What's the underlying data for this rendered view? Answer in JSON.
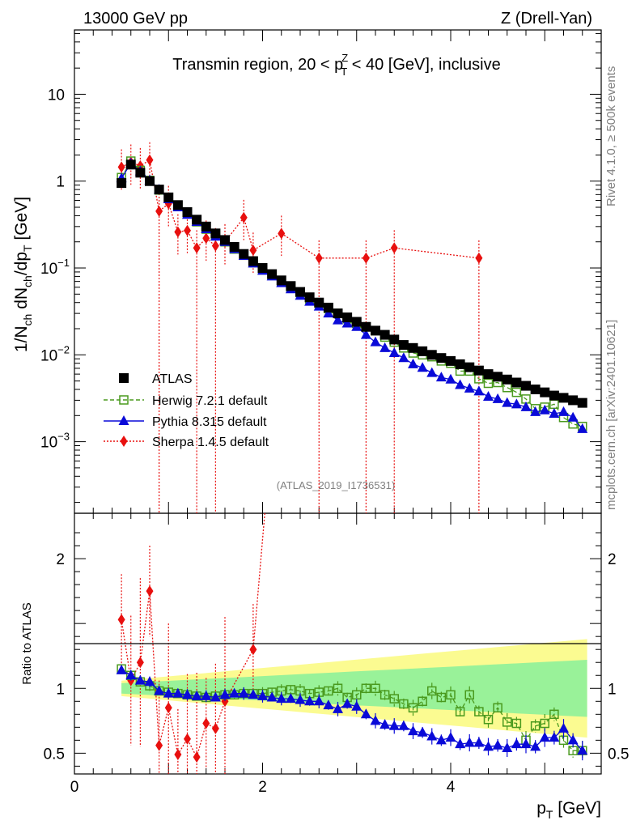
{
  "header": {
    "left": "13000 GeV pp",
    "right": "Z (Drell-Yan)"
  },
  "side_labels": {
    "rivet": "Rivet 4.1.0, ≥ 500k events",
    "mcplots": "mcplots.cern.ch [arXiv:2401.10621]"
  },
  "chart_data": [
    {
      "type": "scatter",
      "panel": "main",
      "title": "Transmin region, 20 < p_T^Z < 40 [GeV], inclusive",
      "title_parts": {
        "a": "Transmin region, 20 < p",
        "sub": "T",
        "sup": "Z",
        "b": " < 40 [GeV], inclusive"
      },
      "ylabel": "1/N_ch dN_ch/dp_T [GeV]",
      "ylabel_parts": {
        "p1": "1/N",
        "s1": "ch",
        "p2": " dN",
        "s2": "ch",
        "p3": "/dp",
        "s3": "T",
        "p4": " [GeV]"
      },
      "yscale": "log",
      "ylim": [
        0.00015,
        55
      ],
      "xlim": [
        0,
        5.6
      ],
      "yticks": [
        {
          "value": 10,
          "label": "10",
          "exp": ""
        },
        {
          "value": 1,
          "label": "1",
          "exp": ""
        },
        {
          "value": 0.1,
          "label": "10",
          "exp": "−1"
        },
        {
          "value": 0.01,
          "label": "10",
          "exp": "−2"
        },
        {
          "value": 0.001,
          "label": "10",
          "exp": "−3"
        }
      ],
      "watermark": "(ATLAS_2019_I1736531)",
      "legend_position": "lower-left",
      "series": [
        {
          "name": "ATLAS",
          "color": "#000000",
          "marker": "square",
          "x": [
            0.5,
            0.6,
            0.7,
            0.8,
            0.9,
            1.0,
            1.1,
            1.2,
            1.3,
            1.4,
            1.5,
            1.6,
            1.7,
            1.8,
            1.9,
            2.0,
            2.1,
            2.2,
            2.3,
            2.4,
            2.5,
            2.6,
            2.7,
            2.8,
            2.9,
            3.0,
            3.1,
            3.2,
            3.3,
            3.4,
            3.5,
            3.6,
            3.7,
            3.8,
            3.9,
            4.0,
            4.1,
            4.2,
            4.3,
            4.4,
            4.5,
            4.6,
            4.7,
            4.8,
            4.9,
            5.0,
            5.1,
            5.2,
            5.3,
            5.4
          ],
          "y": [
            0.95,
            1.55,
            1.25,
            1.0,
            0.8,
            0.65,
            0.53,
            0.44,
            0.36,
            0.3,
            0.25,
            0.21,
            0.175,
            0.145,
            0.12,
            0.1,
            0.085,
            0.072,
            0.062,
            0.053,
            0.046,
            0.04,
            0.035,
            0.03,
            0.027,
            0.024,
            0.021,
            0.019,
            0.017,
            0.015,
            0.013,
            0.012,
            0.011,
            0.01,
            0.0092,
            0.0085,
            0.0078,
            0.0072,
            0.0066,
            0.006,
            0.0056,
            0.0052,
            0.0048,
            0.0044,
            0.004,
            0.0037,
            0.0034,
            0.0032,
            0.003,
            0.0028
          ]
        },
        {
          "name": "Herwig 7.2.1 default",
          "color": "#4a9a1e",
          "marker": "open-square",
          "line": "dashed",
          "x": [
            0.5,
            0.6,
            0.7,
            0.8,
            0.9,
            1.0,
            1.1,
            1.2,
            1.3,
            1.4,
            1.5,
            1.6,
            1.7,
            1.8,
            1.9,
            2.0,
            2.1,
            2.2,
            2.3,
            2.4,
            2.5,
            2.6,
            2.7,
            2.8,
            2.9,
            3.0,
            3.1,
            3.2,
            3.3,
            3.4,
            3.5,
            3.6,
            3.7,
            3.8,
            3.9,
            4.0,
            4.1,
            4.2,
            4.3,
            4.4,
            4.5,
            4.6,
            4.7,
            4.8,
            4.9,
            5.0,
            5.1,
            5.2,
            5.3,
            5.4
          ],
          "y": [
            1.1,
            1.7,
            1.33,
            1.02,
            0.79,
            0.63,
            0.51,
            0.42,
            0.34,
            0.28,
            0.235,
            0.2,
            0.165,
            0.14,
            0.115,
            0.095,
            0.083,
            0.07,
            0.06,
            0.052,
            0.044,
            0.039,
            0.034,
            0.03,
            0.026,
            0.023,
            0.021,
            0.019,
            0.016,
            0.014,
            0.012,
            0.0105,
            0.01,
            0.0095,
            0.0085,
            0.008,
            0.0065,
            0.0065,
            0.0053,
            0.0047,
            0.0048,
            0.0042,
            0.0037,
            0.0031,
            0.0024,
            0.0025,
            0.0027,
            0.0019,
            0.0016,
            0.0015
          ]
        },
        {
          "name": "Pythia 8.315 default",
          "color": "#0a0ad8",
          "marker": "triangle",
          "line": "solid",
          "x": [
            0.5,
            0.6,
            0.7,
            0.8,
            0.9,
            1.0,
            1.1,
            1.2,
            1.3,
            1.4,
            1.5,
            1.6,
            1.7,
            1.8,
            1.9,
            2.0,
            2.1,
            2.2,
            2.3,
            2.4,
            2.5,
            2.6,
            2.7,
            2.8,
            2.9,
            3.0,
            3.1,
            3.2,
            3.3,
            3.4,
            3.5,
            3.6,
            3.7,
            3.8,
            3.9,
            4.0,
            4.1,
            4.2,
            4.3,
            4.4,
            4.5,
            4.6,
            4.7,
            4.8,
            4.9,
            5.0,
            5.1,
            5.2,
            5.3,
            5.4
          ],
          "y": [
            1.08,
            1.6,
            1.3,
            1.02,
            0.8,
            0.62,
            0.5,
            0.41,
            0.34,
            0.28,
            0.23,
            0.2,
            0.165,
            0.138,
            0.113,
            0.093,
            0.08,
            0.067,
            0.057,
            0.048,
            0.041,
            0.036,
            0.03,
            0.025,
            0.023,
            0.021,
            0.017,
            0.014,
            0.012,
            0.0105,
            0.0092,
            0.0078,
            0.0071,
            0.0062,
            0.0055,
            0.0052,
            0.0045,
            0.0041,
            0.0038,
            0.0033,
            0.0031,
            0.0028,
            0.0027,
            0.0025,
            0.0022,
            0.0023,
            0.0021,
            0.0022,
            0.0019,
            0.0014
          ]
        },
        {
          "name": "Sherpa 1.4.5 default",
          "color": "#e8100f",
          "marker": "diamond",
          "line": "dotted",
          "x": [
            0.5,
            0.6,
            0.7,
            0.8,
            0.9,
            1.0,
            1.1,
            1.2,
            1.3,
            1.4,
            1.5,
            1.6,
            1.8,
            1.9,
            2.2,
            2.6,
            3.1,
            3.4,
            4.3
          ],
          "y": [
            1.45,
            1.65,
            1.5,
            1.75,
            0.45,
            0.55,
            0.26,
            0.27,
            0.17,
            0.22,
            0.18,
            0.2,
            0.38,
            0.16,
            0.25,
            0.13,
            0.13,
            0.17,
            0.13
          ]
        }
      ]
    },
    {
      "type": "scatter",
      "panel": "ratio",
      "ylabel": "Ratio to ATLAS",
      "xlabel": "p_T [GeV]",
      "xlabel_parts": {
        "p": "p",
        "s": "T",
        "rest": " [GeV]"
      },
      "ylim": [
        0.34,
        2.35
      ],
      "xlim": [
        0,
        5.6
      ],
      "yticks": [
        {
          "value": 0.5,
          "label": "0.5"
        },
        {
          "value": 1,
          "label": "1"
        },
        {
          "value": 2,
          "label": "2"
        }
      ],
      "xticks": [
        {
          "value": 0,
          "label": "0"
        },
        {
          "value": 2,
          "label": "2"
        },
        {
          "value": 4,
          "label": "4"
        }
      ],
      "bands": {
        "inner_color": "#99f299",
        "outer_color": "#fbfb91",
        "inner_x": [
          0.5,
          5.45
        ],
        "inner_halfwidth": [
          0.04,
          0.22
        ],
        "outer_halfwidth": [
          0.06,
          0.38
        ]
      },
      "series": [
        {
          "name": "Herwig 7.2.1 default",
          "color": "#4a9a1e",
          "x": [
            0.5,
            0.6,
            0.7,
            0.8,
            0.9,
            1.0,
            1.1,
            1.2,
            1.3,
            1.4,
            1.5,
            1.6,
            1.7,
            1.8,
            1.9,
            2.0,
            2.1,
            2.2,
            2.3,
            2.4,
            2.5,
            2.6,
            2.7,
            2.8,
            2.9,
            3.0,
            3.1,
            3.2,
            3.3,
            3.4,
            3.5,
            3.6,
            3.7,
            3.8,
            3.9,
            4.0,
            4.1,
            4.2,
            4.3,
            4.4,
            4.5,
            4.6,
            4.7,
            4.8,
            4.9,
            5.0,
            5.1,
            5.2,
            5.3,
            5.4
          ],
          "y": [
            1.15,
            1.1,
            1.05,
            1.02,
            0.98,
            0.97,
            0.96,
            0.95,
            0.94,
            0.93,
            0.94,
            0.95,
            0.95,
            0.96,
            0.96,
            0.96,
            0.97,
            0.98,
            0.99,
            0.98,
            0.96,
            0.97,
            0.98,
            1.0,
            0.93,
            0.95,
            1.0,
            1.0,
            0.95,
            0.92,
            0.88,
            0.85,
            0.9,
            0.98,
            0.93,
            0.95,
            0.82,
            0.95,
            0.82,
            0.76,
            0.85,
            0.74,
            0.73,
            0.6,
            0.71,
            0.73,
            0.8,
            0.6,
            0.52,
            0.52
          ]
        },
        {
          "name": "Pythia 8.315 default",
          "color": "#0a0ad8",
          "x": [
            0.5,
            0.6,
            0.7,
            0.8,
            0.9,
            1.0,
            1.1,
            1.2,
            1.3,
            1.4,
            1.5,
            1.6,
            1.7,
            1.8,
            1.9,
            2.0,
            2.1,
            2.2,
            2.3,
            2.4,
            2.5,
            2.6,
            2.7,
            2.8,
            2.9,
            3.0,
            3.1,
            3.2,
            3.3,
            3.4,
            3.5,
            3.6,
            3.7,
            3.8,
            3.9,
            4.0,
            4.1,
            4.2,
            4.3,
            4.4,
            4.5,
            4.6,
            4.7,
            4.8,
            4.9,
            5.0,
            5.1,
            5.2,
            5.3,
            5.4
          ],
          "y": [
            1.14,
            1.1,
            1.06,
            1.05,
            0.98,
            0.96,
            0.96,
            0.95,
            0.94,
            0.94,
            0.93,
            0.95,
            0.96,
            0.96,
            0.95,
            0.94,
            0.93,
            0.92,
            0.92,
            0.91,
            0.9,
            0.9,
            0.87,
            0.84,
            0.88,
            0.86,
            0.8,
            0.75,
            0.72,
            0.71,
            0.71,
            0.67,
            0.66,
            0.63,
            0.6,
            0.62,
            0.57,
            0.58,
            0.58,
            0.55,
            0.56,
            0.54,
            0.57,
            0.57,
            0.55,
            0.62,
            0.62,
            0.69,
            0.6,
            0.52
          ]
        },
        {
          "name": "Sherpa 1.4.5 default",
          "color": "#e8100f",
          "x": [
            0.5,
            0.6,
            0.7,
            0.8,
            0.9,
            1.0,
            1.1,
            1.2,
            1.3,
            1.4,
            1.5,
            1.6,
            1.9
          ],
          "y": [
            1.53,
            1.06,
            1.2,
            1.75,
            0.56,
            0.85,
            0.49,
            0.61,
            0.47,
            0.73,
            0.69,
            0.9,
            1.3
          ]
        }
      ]
    }
  ]
}
